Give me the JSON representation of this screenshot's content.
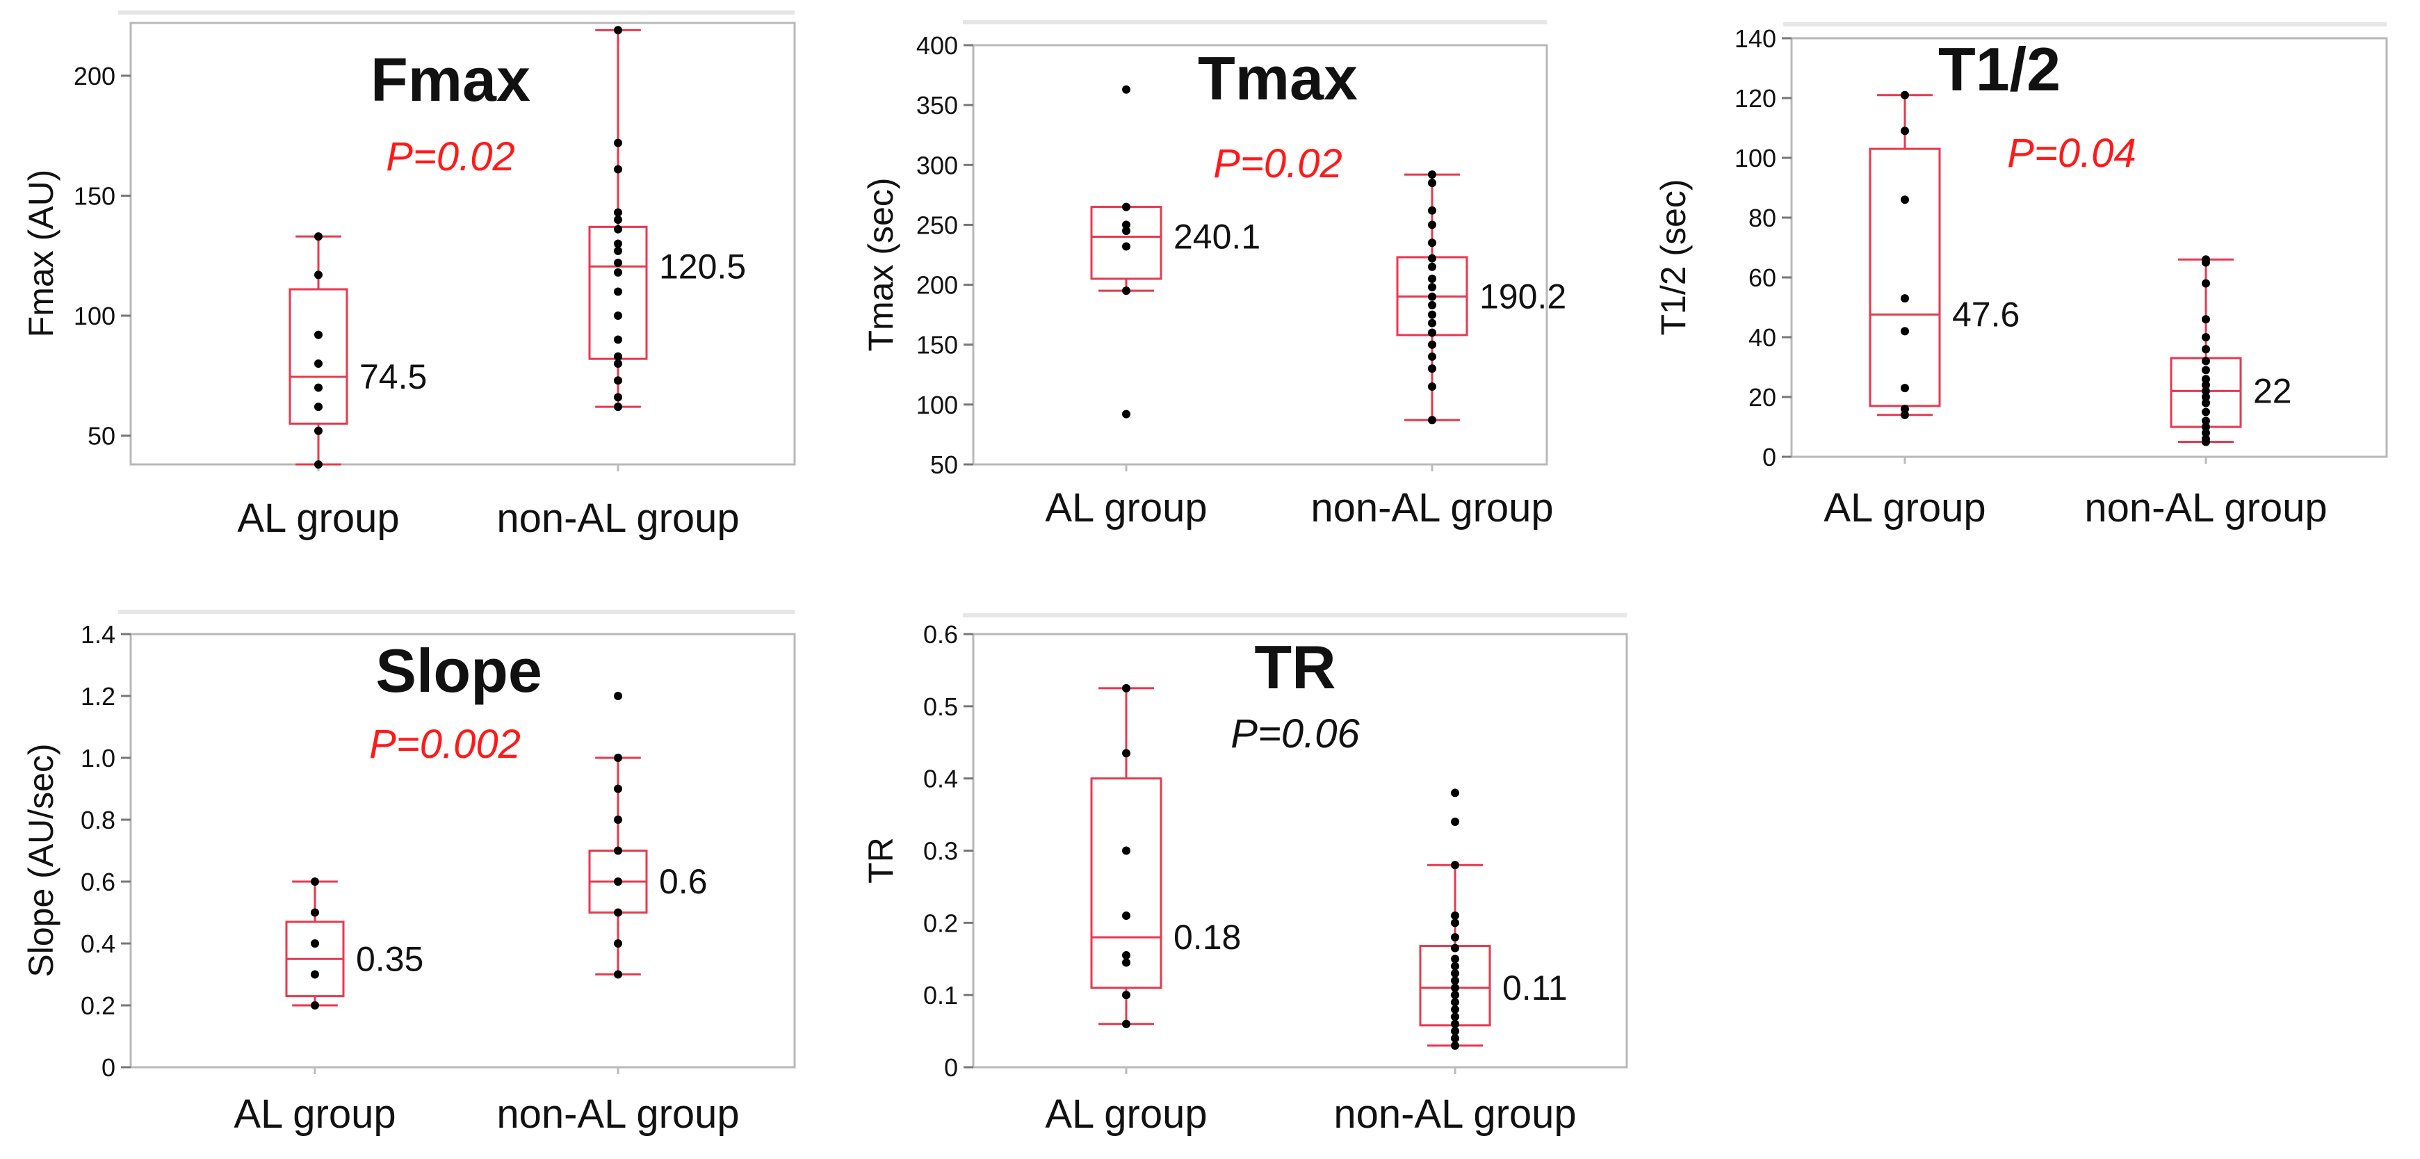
{
  "accent_color": "#e8384f",
  "point_color": "#000000",
  "chart_data": [
    {
      "type": "box",
      "title": "Fmax",
      "p_value": "P=0.02",
      "p_value_color": "#ff1a1a",
      "ylabel": "Fmax (AU)",
      "ylim": [
        38,
        222
      ],
      "yticks": [
        50,
        100,
        150,
        200
      ],
      "categories": [
        "AL group",
        "non-AL group"
      ],
      "series": [
        {
          "category": "AL group",
          "min": 38,
          "q1": 55,
          "median": 74.5,
          "q3": 111,
          "max": 133,
          "median_label": "74.5",
          "points": [
            133,
            117,
            92,
            80,
            70,
            62,
            52,
            38
          ]
        },
        {
          "category": "non-AL group",
          "min": 62,
          "q1": 82,
          "median": 120.5,
          "q3": 137,
          "max": 219,
          "median_label": "120.5",
          "points": [
            219,
            172,
            161,
            143,
            140,
            136,
            130,
            127,
            122,
            118,
            110,
            100,
            90,
            83,
            80,
            73,
            66,
            62
          ]
        }
      ]
    },
    {
      "type": "box",
      "title": "Tmax",
      "p_value": "P=0.02",
      "p_value_color": "#ff1a1a",
      "ylabel": "Tmax (sec)",
      "ylim": [
        50,
        400
      ],
      "yticks": [
        50,
        100,
        150,
        200,
        250,
        300,
        350,
        400
      ],
      "categories": [
        "AL group",
        "non-AL group"
      ],
      "series": [
        {
          "category": "AL group",
          "min": 195,
          "q1": 205,
          "median": 240.1,
          "q3": 265,
          "max": 265,
          "median_label": "240.1",
          "points": [
            363,
            265,
            250,
            245,
            232,
            195,
            92
          ]
        },
        {
          "category": "non-AL group",
          "min": 87,
          "q1": 158,
          "median": 190.2,
          "q3": 223,
          "max": 292,
          "median_label": "190.2",
          "points": [
            292,
            285,
            262,
            250,
            235,
            222,
            215,
            205,
            198,
            190,
            183,
            175,
            168,
            160,
            150,
            140,
            130,
            115,
            87
          ]
        }
      ]
    },
    {
      "type": "box",
      "title": "T1/2",
      "p_value": "P=0.04",
      "p_value_color": "#ff1a1a",
      "ylabel": "T1/2 (sec)",
      "ylim": [
        0,
        140
      ],
      "yticks": [
        0,
        20,
        40,
        60,
        80,
        100,
        120,
        140
      ],
      "categories": [
        "AL group",
        "non-AL group"
      ],
      "series": [
        {
          "category": "AL group",
          "min": 14,
          "q1": 17,
          "median": 47.6,
          "q3": 103,
          "max": 121,
          "median_label": "47.6",
          "points": [
            121,
            109,
            86,
            53,
            42,
            23,
            16,
            14
          ]
        },
        {
          "category": "non-AL group",
          "min": 5,
          "q1": 10,
          "median": 22,
          "q3": 33,
          "max": 66,
          "median_label": "22",
          "points": [
            66,
            65,
            58,
            46,
            40,
            36,
            32,
            29,
            26,
            24,
            22,
            20,
            18,
            15,
            12,
            10,
            8,
            6,
            5
          ]
        }
      ]
    },
    {
      "type": "box",
      "title": "Slope",
      "p_value": "P=0.002",
      "p_value_color": "#ff1a1a",
      "ylabel": "Slope (AU/sec)",
      "ylim": [
        0,
        1.4
      ],
      "yticks": [
        "0",
        "0.2",
        "0.4",
        "0.6",
        "0.8",
        "1.0",
        "1.2",
        "1.4"
      ],
      "categories": [
        "AL group",
        "non-AL group"
      ],
      "series": [
        {
          "category": "AL group",
          "min": 0.2,
          "q1": 0.23,
          "median": 0.35,
          "q3": 0.47,
          "max": 0.6,
          "median_label": "0.35",
          "points": [
            0.6,
            0.5,
            0.4,
            0.3,
            0.2
          ]
        },
        {
          "category": "non-AL group",
          "min": 0.3,
          "q1": 0.5,
          "median": 0.6,
          "q3": 0.7,
          "max": 1.0,
          "median_label": "0.6",
          "points": [
            1.2,
            1.0,
            0.9,
            0.8,
            0.7,
            0.6,
            0.5,
            0.4,
            0.3
          ]
        }
      ]
    },
    {
      "type": "box",
      "title": "TR",
      "p_value": "P=0.06",
      "p_value_color": "#111111",
      "ylabel": "TR",
      "ylim": [
        0,
        0.6
      ],
      "yticks": [
        "0",
        "0.1",
        "0.2",
        "0.3",
        "0.4",
        "0.5",
        "0.6"
      ],
      "categories": [
        "AL group",
        "non-AL group"
      ],
      "series": [
        {
          "category": "AL group",
          "min": 0.06,
          "q1": 0.11,
          "median": 0.18,
          "q3": 0.4,
          "max": 0.525,
          "median_label": "0.18",
          "points": [
            0.525,
            0.435,
            0.3,
            0.21,
            0.155,
            0.145,
            0.1,
            0.06
          ]
        },
        {
          "category": "non-AL group",
          "min": 0.03,
          "q1": 0.058,
          "median": 0.11,
          "q3": 0.168,
          "max": 0.28,
          "median_label": "0.11",
          "points": [
            0.38,
            0.34,
            0.28,
            0.21,
            0.2,
            0.18,
            0.165,
            0.15,
            0.14,
            0.13,
            0.12,
            0.11,
            0.1,
            0.09,
            0.08,
            0.07,
            0.06,
            0.05,
            0.04,
            0.03
          ]
        }
      ]
    }
  ]
}
